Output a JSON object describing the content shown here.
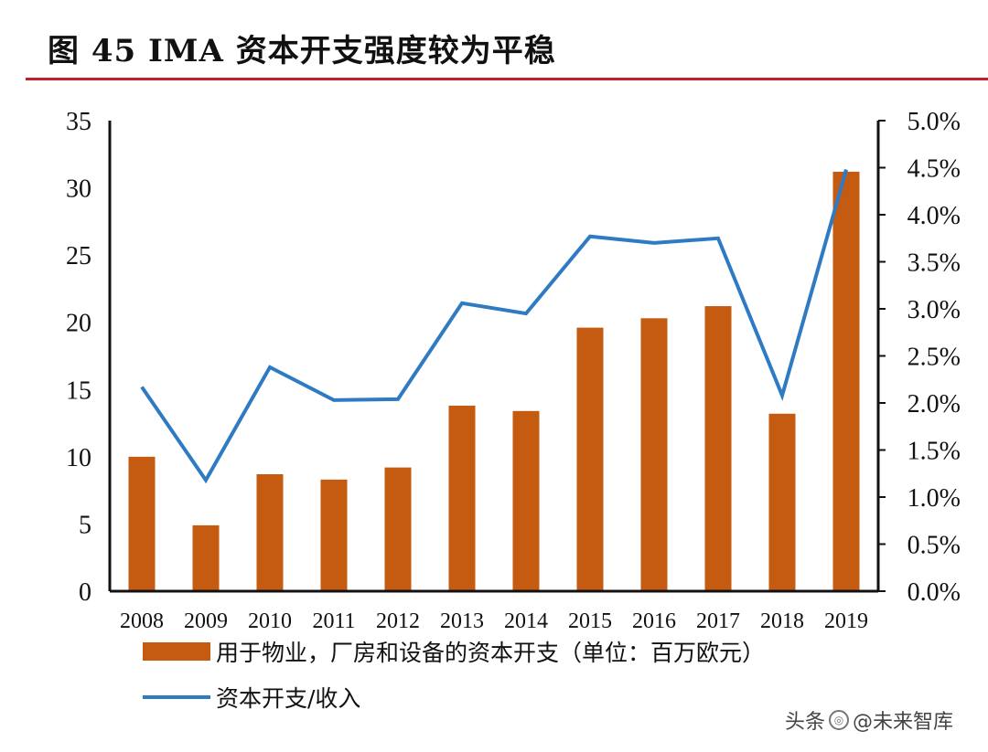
{
  "title": "图  45 IMA 资本开支强度较为平稳",
  "watermark": {
    "prefix": "头条",
    "account": "@未来智库"
  },
  "colors": {
    "bar": "#c55a11",
    "line": "#2e7bc4",
    "rule": "#c0202a",
    "axis": "#111111"
  },
  "chart_data": {
    "type": "bar",
    "title": "IMA 资本开支强度较为平稳",
    "categories": [
      "2008",
      "2009",
      "2010",
      "2011",
      "2012",
      "2013",
      "2014",
      "2015",
      "2016",
      "2017",
      "2018",
      "2019"
    ],
    "series": [
      {
        "name": "用于物业，厂房和设备的资本开支（单位：百万欧元）",
        "type": "bar",
        "axis": "left",
        "values": [
          10.0,
          4.9,
          8.7,
          8.3,
          9.2,
          13.8,
          13.4,
          19.6,
          20.3,
          21.2,
          13.2,
          31.2
        ]
      },
      {
        "name": "资本开支/收入",
        "type": "line",
        "axis": "right",
        "values": [
          2.17,
          1.18,
          2.38,
          2.03,
          2.04,
          3.06,
          2.95,
          3.77,
          3.7,
          3.75,
          2.08,
          4.48
        ]
      }
    ],
    "left_axis": {
      "ylim": [
        0,
        35
      ],
      "ticks": [
        "0",
        "5",
        "10",
        "15",
        "20",
        "25",
        "30",
        "35"
      ],
      "tick_values": [
        0,
        5,
        10,
        15,
        20,
        25,
        30,
        35
      ]
    },
    "right_axis": {
      "ylim": [
        0,
        5
      ],
      "ticks": [
        "0.0%",
        "0.5%",
        "1.0%",
        "1.5%",
        "2.0%",
        "2.5%",
        "3.0%",
        "3.5%",
        "4.0%",
        "4.5%",
        "5.0%"
      ],
      "tick_values": [
        0,
        0.5,
        1.0,
        1.5,
        2.0,
        2.5,
        3.0,
        3.5,
        4.0,
        4.5,
        5.0
      ]
    },
    "legend": {
      "position": "bottom",
      "bar_label": "用于物业，厂房和设备的资本开支（单位：百万欧元）",
      "line_label": "资本开支/收入"
    },
    "grid": false
  }
}
